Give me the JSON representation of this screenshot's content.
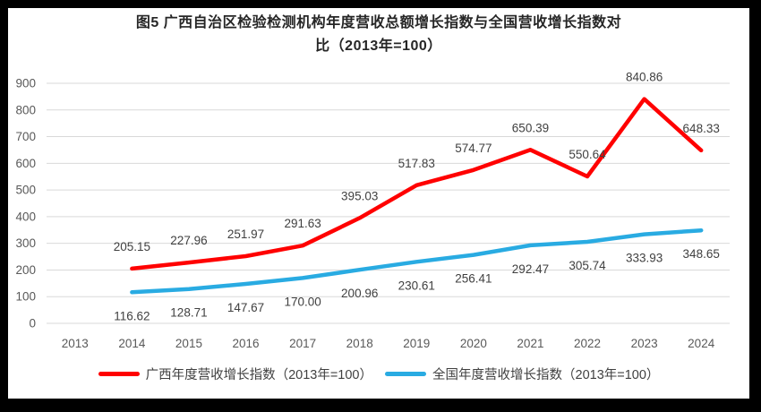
{
  "title": {
    "line1": "图5  广西自治区检验检测机构年度营收总额增长指数与全国营收增长指数对",
    "line2": "比（2013年=100）"
  },
  "legend": [
    {
      "id": "guangxi",
      "label": "广西年度营收增长指数（2013年=100）",
      "color": "#FF0000"
    },
    {
      "id": "national",
      "label": "全国年度营收增长指数（2013年=100）",
      "color": "#29ABE2"
    }
  ],
  "colors": {
    "frame": "#000000",
    "panel": "#FFFFFF",
    "gridline": "#D9D9D9",
    "axis_text": "#595959",
    "data_label_text": "#404040",
    "title_text": "#262626",
    "guangxi_series": "#FF0000",
    "national_series": "#29ABE2"
  },
  "chart_data": {
    "type": "line",
    "title": "图5 广西自治区检验检测机构年度营收总额增长指数与全国营收增长指数对比（2013年=100）",
    "categories": [
      "2013",
      "2014",
      "2015",
      "2016",
      "2017",
      "2018",
      "2019",
      "2020",
      "2021",
      "2022",
      "2023",
      "2024"
    ],
    "series": [
      {
        "id": "guangxi",
        "name": "广西年度营收增长指数（2013年=100）",
        "color": "#FF0000",
        "label_position": "above",
        "values": [
          null,
          205.15,
          227.96,
          251.97,
          291.63,
          395.03,
          517.83,
          574.77,
          650.39,
          550.64,
          840.86,
          648.33
        ]
      },
      {
        "id": "national",
        "name": "全国年度营收增长指数（2013年=100）",
        "color": "#29ABE2",
        "label_position": "below",
        "values": [
          null,
          116.62,
          128.71,
          147.67,
          170.0,
          200.96,
          230.61,
          256.41,
          292.47,
          305.74,
          333.93,
          348.65
        ]
      }
    ],
    "ylim": [
      0,
      900
    ],
    "ytick_step": 100,
    "grid": "horizontal-only",
    "legend_position": "bottom",
    "data_labels": "shown-2-decimals"
  }
}
